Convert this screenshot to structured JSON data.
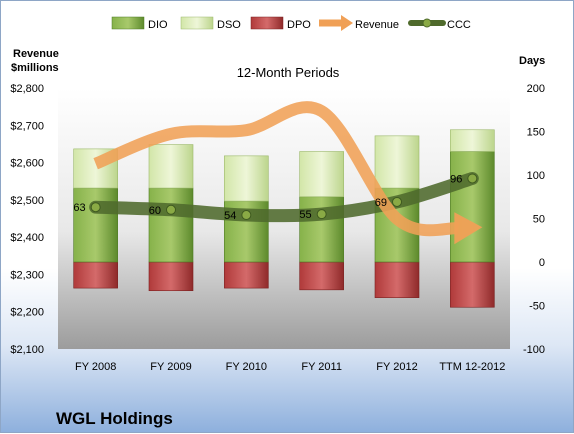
{
  "chart_data": {
    "type": "bar",
    "title": "12-Month Periods",
    "company": "WGL Holdings",
    "categories": [
      "FY 2008",
      "FY 2009",
      "FY 2010",
      "FY 2011",
      "FY 2012",
      "TTM 12-2012"
    ],
    "left_axis": {
      "label_line1": "Revenue",
      "label_line2": "$millions",
      "ylim": [
        2100,
        2800
      ],
      "ticks": [
        "$2,100",
        "$2,200",
        "$2,300",
        "$2,400",
        "$2,500",
        "$2,600",
        "$2,700",
        "$2,800"
      ],
      "tick_values": [
        2100,
        2200,
        2300,
        2400,
        2500,
        2600,
        2700,
        2800
      ]
    },
    "right_axis": {
      "label": "Days",
      "ylim": [
        -100,
        200
      ],
      "ticks": [
        "-100",
        "-50",
        "0",
        "50",
        "100",
        "150",
        "200"
      ],
      "tick_values": [
        -100,
        -50,
        0,
        50,
        100,
        150,
        200
      ]
    },
    "series": [
      {
        "name": "DIO",
        "kind": "stacked-bar",
        "axis": "right",
        "color": "#6f9e3a",
        "values": [
          85,
          85,
          70,
          75,
          85,
          127
        ]
      },
      {
        "name": "DSO",
        "kind": "stacked-bar",
        "axis": "right",
        "color": "#d6e8b0",
        "values": [
          45,
          50,
          52,
          52,
          60,
          25
        ]
      },
      {
        "name": "DPO",
        "kind": "negative-bar",
        "axis": "right",
        "color": "#b83d3d",
        "values": [
          -30,
          -33,
          -30,
          -32,
          -41,
          -52
        ]
      },
      {
        "name": "Revenue",
        "kind": "arrow-line",
        "axis": "left",
        "color": "#f0a056",
        "values": [
          2597,
          2677,
          2687,
          2738,
          2449,
          2424
        ]
      },
      {
        "name": "CCC",
        "kind": "line",
        "axis": "right",
        "color": "#4f6a2c",
        "values": [
          63,
          60,
          54,
          55,
          69,
          96
        ]
      }
    ],
    "ccc_labels": [
      "63",
      "60",
      "54",
      "55",
      "69",
      "96"
    ],
    "legend": [
      "DIO",
      "DSO",
      "DPO",
      "Revenue",
      "CCC"
    ],
    "legend_placement": "top",
    "grid": false
  }
}
